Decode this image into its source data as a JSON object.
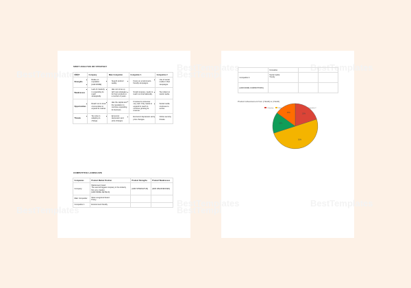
{
  "watermark": "BestTemplates",
  "page1": {
    "swot_heading": "SWOT ANALYSIS OR STRATEGY",
    "swot_headers": [
      "SWOT",
      "Company",
      "Main Competitor",
      "Competitor 1",
      "Competitor 2"
    ],
    "swot_rows": [
      {
        "label": "Strengths",
        "cells": [
          [
            "Relies on reputation.",
            "[Add MORE]"
          ],
          [
            "Superb product quality."
          ],
          [
            "Focus on environment-friendly campaigns."
          ],
          [
            "Use of social media in their campaigns."
          ]
        ]
      },
      {
        "label": "Weaknesses",
        "cells": [
          [
            "Lack of creativity in expanding its reach strategically."
          ],
          [
            "Has not come up with new strategies for their products in a number of years."
          ],
          [
            "Small company, needs to reach out internationally."
          ],
          [
            "Too reliant on social media."
          ]
        ]
      },
      {
        "label": "Opportunities",
        "cells": [
          [
            "Reach out to local communities to expand its market."
          ],
          [
            "Has the capital and the reputation to continue expanding its business."
          ],
          [
            "It knows its consumer very well. Only needs to expand its reach to continue growing its revenue."
          ],
          [
            "Social media continues to evolve."
          ]
        ]
      },
      {
        "label": "Threats",
        "cells": [
          [
            "Too slow in adapting to change."
          ],
          [
            "Economic depression and price changes."
          ],
          [
            "Economic depression and price changes."
          ],
          [
            "Online security threats."
          ]
        ]
      }
    ],
    "landscape_heading": "COMPETITIVE LANDSCAPE",
    "landscape_headers": [
      "Companies",
      "Product Market Position",
      "Product Strengths",
      "Product Weaknesses"
    ],
    "landscape_rows": [
      {
        "name": "Company",
        "position": [
          "Well-known brand",
          "The second biggest company in the industry",
          "Not very creative",
          "[ADD MORE DETAILS]"
        ],
        "strengths": "[ADD STRENGTHS]",
        "weaknesses": "[ADD WEAKNESSES]"
      },
      {
        "name": "Main Competitor",
        "position": [
          "Most recognized brand",
          "Pricey"
        ],
        "strengths": "",
        "weaknesses": ""
      },
      {
        "name": "Competitor 1",
        "position": [
          "Environment friendly"
        ],
        "strengths": "",
        "weaknesses": ""
      }
    ]
  },
  "page2": {
    "rows": [
      {
        "name": "",
        "position": [
          "Innovative"
        ]
      },
      {
        "name": "Competitor 2",
        "position": [
          "Social media",
          "Trendy"
        ]
      },
      {
        "name": "[ADD MORE COMPETITORS]",
        "position": []
      }
    ]
  },
  "chart_data": {
    "type": "pie",
    "title": "Product Advancement from [YEAR] to [YEAR]",
    "legend_position": "top",
    "categories": [
      "Company",
      "Main Competitor",
      "Competitor 1",
      "Competitor 2"
    ],
    "values": [
      20,
      50,
      15,
      15
    ],
    "labels": [
      "20%",
      "50%",
      "15%",
      "15%"
    ],
    "colors": [
      "#db4437",
      "#f4b400",
      "#0f9d58",
      "#ff6d00"
    ]
  }
}
